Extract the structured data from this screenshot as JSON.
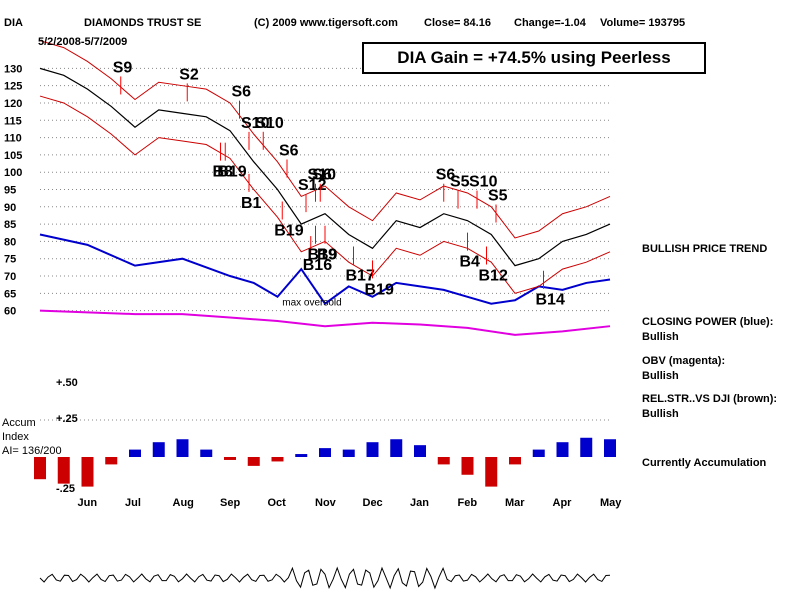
{
  "header": {
    "symbol": "DIA",
    "name": "DIAMONDS TRUST SE",
    "copyright": "(C) 2009 www.tigersoft.com",
    "close": "Close=  84.16",
    "change": "Change=-1.04",
    "volume": "Volume= 193795",
    "daterange": "5/2/2008-5/7/2009"
  },
  "gain_box": "DIA Gain = +74.5% using Peerless",
  "indicators": {
    "price_trend": "BULLISH PRICE TREND",
    "cp_title": "CLOSING POWER (blue):",
    "cp_value": "Bullish",
    "obv_title": "OBV (magenta):",
    "obv_value": "Bullish",
    "rel_title": "REL.STR..VS DJI (brown):",
    "rel_value": "Bullish",
    "accum_status": "Currently Accumulation"
  },
  "accum_panel": {
    "title": "Accum",
    "subtitle": "Index",
    "ai": "AI= 136/200",
    "top": "+.25",
    "bottom": "-.25"
  },
  "colors": {
    "price": "#000000",
    "bands": "#cc0000",
    "ma": "#0000ff",
    "closing_power": "#0000cc",
    "obv": "#e000e0",
    "signals": "#ff0000",
    "accum_pos": "#0000cc",
    "accum_neg": "#cc0000"
  },
  "chart_data": {
    "type": "line",
    "title": "DIAMONDS TRUST SE",
    "yticks": [
      130,
      125,
      120,
      115,
      110,
      105,
      100,
      95,
      90,
      85,
      80,
      75,
      70,
      65,
      60
    ],
    "ylim": [
      57,
      133
    ],
    "extra_ytick": "+.50",
    "months": [
      "Jun",
      "Jul",
      "Aug",
      "Sep",
      "Oct",
      "Nov",
      "Dec",
      "Jan",
      "Feb",
      "Mar",
      "Apr",
      "May"
    ],
    "grid": "dotted-horizontal",
    "series": [
      {
        "name": "DIA",
        "x": [
          0,
          0.5,
          1,
          1.5,
          2,
          2.5,
          3,
          3.5,
          4,
          4.5,
          5,
          5.5,
          6,
          6.5,
          7,
          7.5,
          8,
          8.5,
          9,
          9.5,
          10,
          10.5,
          11,
          11.5,
          12
        ],
        "values": [
          130,
          128,
          124,
          119,
          113,
          118,
          117,
          116,
          112,
          103,
          95,
          85,
          88,
          82,
          78,
          86,
          84,
          88,
          86,
          82,
          73,
          75,
          80,
          82,
          85
        ]
      },
      {
        "name": "CLOSING POWER (blue)",
        "x": [
          0,
          1,
          2,
          3,
          4,
          4.5,
          5,
          5.5,
          6,
          6.5,
          7,
          7.5,
          8,
          8.5,
          9,
          9.5,
          10,
          10.5,
          11,
          11.5,
          12
        ],
        "values": [
          82,
          79,
          73,
          75,
          70,
          68,
          64,
          72,
          62,
          67,
          64,
          68,
          67,
          66,
          64,
          62,
          63,
          67,
          66,
          68,
          69
        ]
      },
      {
        "name": "OBV (magenta)",
        "x": [
          0,
          1,
          2,
          3,
          4,
          5,
          6,
          7,
          8,
          9,
          10,
          11,
          12
        ],
        "values": [
          60,
          59.5,
          59,
          59,
          58,
          57,
          55.5,
          56.5,
          56,
          55,
          53,
          54,
          55.5
        ]
      }
    ],
    "signals": [
      {
        "label": "S9",
        "x": 1.7,
        "dir": "sell"
      },
      {
        "label": "S2",
        "x": 3.1,
        "dir": "sell"
      },
      {
        "label": "S6",
        "x": 4.2,
        "dir": "sell"
      },
      {
        "label": "S10",
        "x": 4.4,
        "dir": "sell"
      },
      {
        "label": "S10",
        "x": 4.7,
        "dir": "sell"
      },
      {
        "label": "S6",
        "x": 5.2,
        "dir": "sell"
      },
      {
        "label": "S12",
        "x": 5.6,
        "dir": "sell"
      },
      {
        "label": "S10",
        "x": 5.8,
        "dir": "sell"
      },
      {
        "label": "S6",
        "x": 5.9,
        "dir": "sell"
      },
      {
        "label": "S6",
        "x": 8.5,
        "dir": "sell"
      },
      {
        "label": "S5",
        "x": 8.8,
        "dir": "sell"
      },
      {
        "label": "S10",
        "x": 9.2,
        "dir": "sell"
      },
      {
        "label": "S5",
        "x": 9.6,
        "dir": "sell"
      },
      {
        "label": "B19",
        "x": 3.9,
        "dir": "buy"
      },
      {
        "label": "B8",
        "x": 3.8,
        "dir": "buy"
      },
      {
        "label": "B1",
        "x": 4.4,
        "dir": "buy"
      },
      {
        "label": "B19",
        "x": 5.1,
        "dir": "buy"
      },
      {
        "label": "B16",
        "x": 5.7,
        "dir": "buy"
      },
      {
        "label": "B19",
        "x": 5.8,
        "dir": "buy"
      },
      {
        "label": "B9",
        "x": 6.0,
        "dir": "buy"
      },
      {
        "label": "B17",
        "x": 6.6,
        "dir": "buy"
      },
      {
        "label": "B19",
        "x": 7.0,
        "dir": "buy"
      },
      {
        "label": "B4",
        "x": 9.0,
        "dir": "buy"
      },
      {
        "label": "B12",
        "x": 9.4,
        "dir": "buy"
      },
      {
        "label": "B14",
        "x": 10.6,
        "dir": "buy"
      }
    ],
    "annotations": [
      "max oversold"
    ],
    "accum": {
      "ylim": [
        -0.25,
        0.25
      ],
      "x": [
        0,
        0.5,
        1,
        1.5,
        2,
        2.5,
        3,
        3.5,
        4,
        4.5,
        5,
        5.5,
        6,
        6.5,
        7,
        7.5,
        8,
        8.5,
        9,
        9.5,
        10,
        10.5,
        11,
        11.5,
        12
      ],
      "values": [
        -0.15,
        -0.18,
        -0.2,
        -0.05,
        0.05,
        0.1,
        0.12,
        0.05,
        -0.02,
        -0.06,
        -0.03,
        0.02,
        0.06,
        0.05,
        0.1,
        0.12,
        0.08,
        -0.05,
        -0.12,
        -0.2,
        -0.05,
        0.05,
        0.1,
        0.13,
        0.12
      ]
    }
  }
}
